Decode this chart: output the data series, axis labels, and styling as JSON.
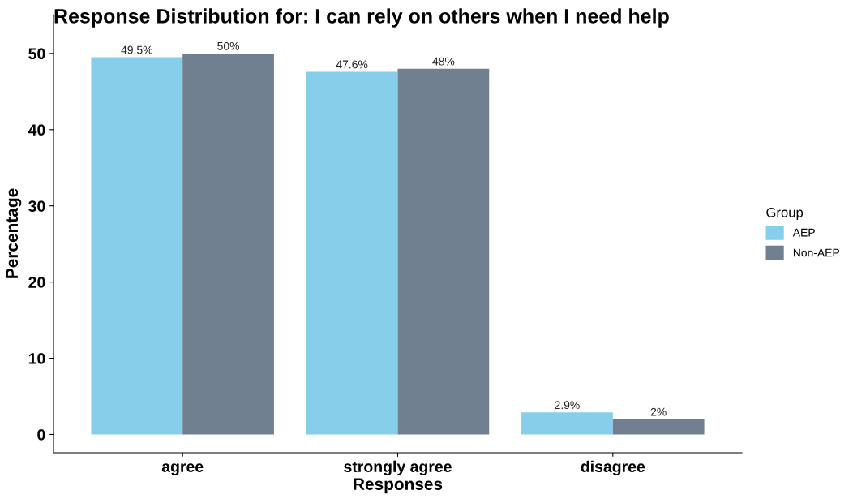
{
  "chart_data": {
    "type": "bar",
    "title": "Response Distribution for: I can rely on others when I need help",
    "xlabel": "Responses",
    "ylabel": "Percentage",
    "legend_title": "Group",
    "categories": [
      "agree",
      "strongly agree",
      "disagree"
    ],
    "series": [
      {
        "name": "AEP",
        "color": "#87ceeb",
        "values": [
          49.5,
          47.6,
          2.9
        ],
        "value_labels": [
          "49.5%",
          "47.6%",
          "2.9%"
        ]
      },
      {
        "name": "Non-AEP",
        "color": "#708090",
        "values": [
          50,
          48,
          2
        ],
        "value_labels": [
          "50%",
          "48%",
          "2%"
        ]
      }
    ],
    "ylim": [
      -2.4,
      55.1
    ],
    "yticks": [
      0,
      10,
      20,
      30,
      40,
      50
    ],
    "grid": false,
    "legend": "right"
  }
}
